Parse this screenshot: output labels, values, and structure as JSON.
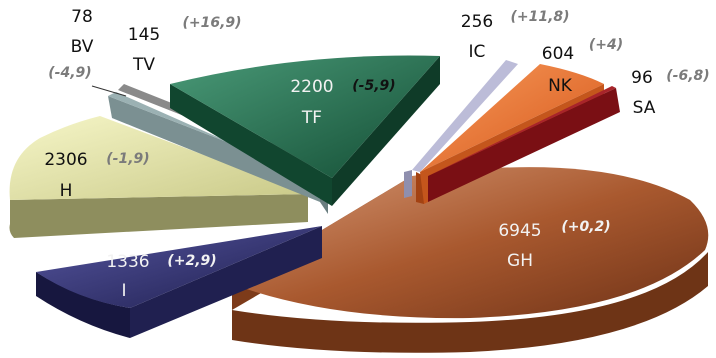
{
  "chart_data": {
    "type": "pie",
    "style": "3d-exploded",
    "categories": [
      "GH",
      "I",
      "H",
      "BV",
      "TV",
      "TF",
      "IC",
      "NK",
      "SA"
    ],
    "values": [
      6945,
      1336,
      2306,
      78,
      145,
      2200,
      256,
      604,
      96
    ],
    "changes": [
      "(+0,2)",
      "(+2,9)",
      "(-1,9)",
      "(-4,9)",
      "(+16,9)",
      "(-5,9)",
      "(+11,8)",
      "(+4)",
      "(-6,8)"
    ],
    "colors": [
      "#9a4c27",
      "#27275e",
      "#dcdc96",
      "#8a8a8a",
      "#9bb1b3",
      "#1c6a49",
      "#bcbcd8",
      "#ec6b22",
      "#7a0f14"
    ],
    "title": "",
    "legend": "none"
  }
}
